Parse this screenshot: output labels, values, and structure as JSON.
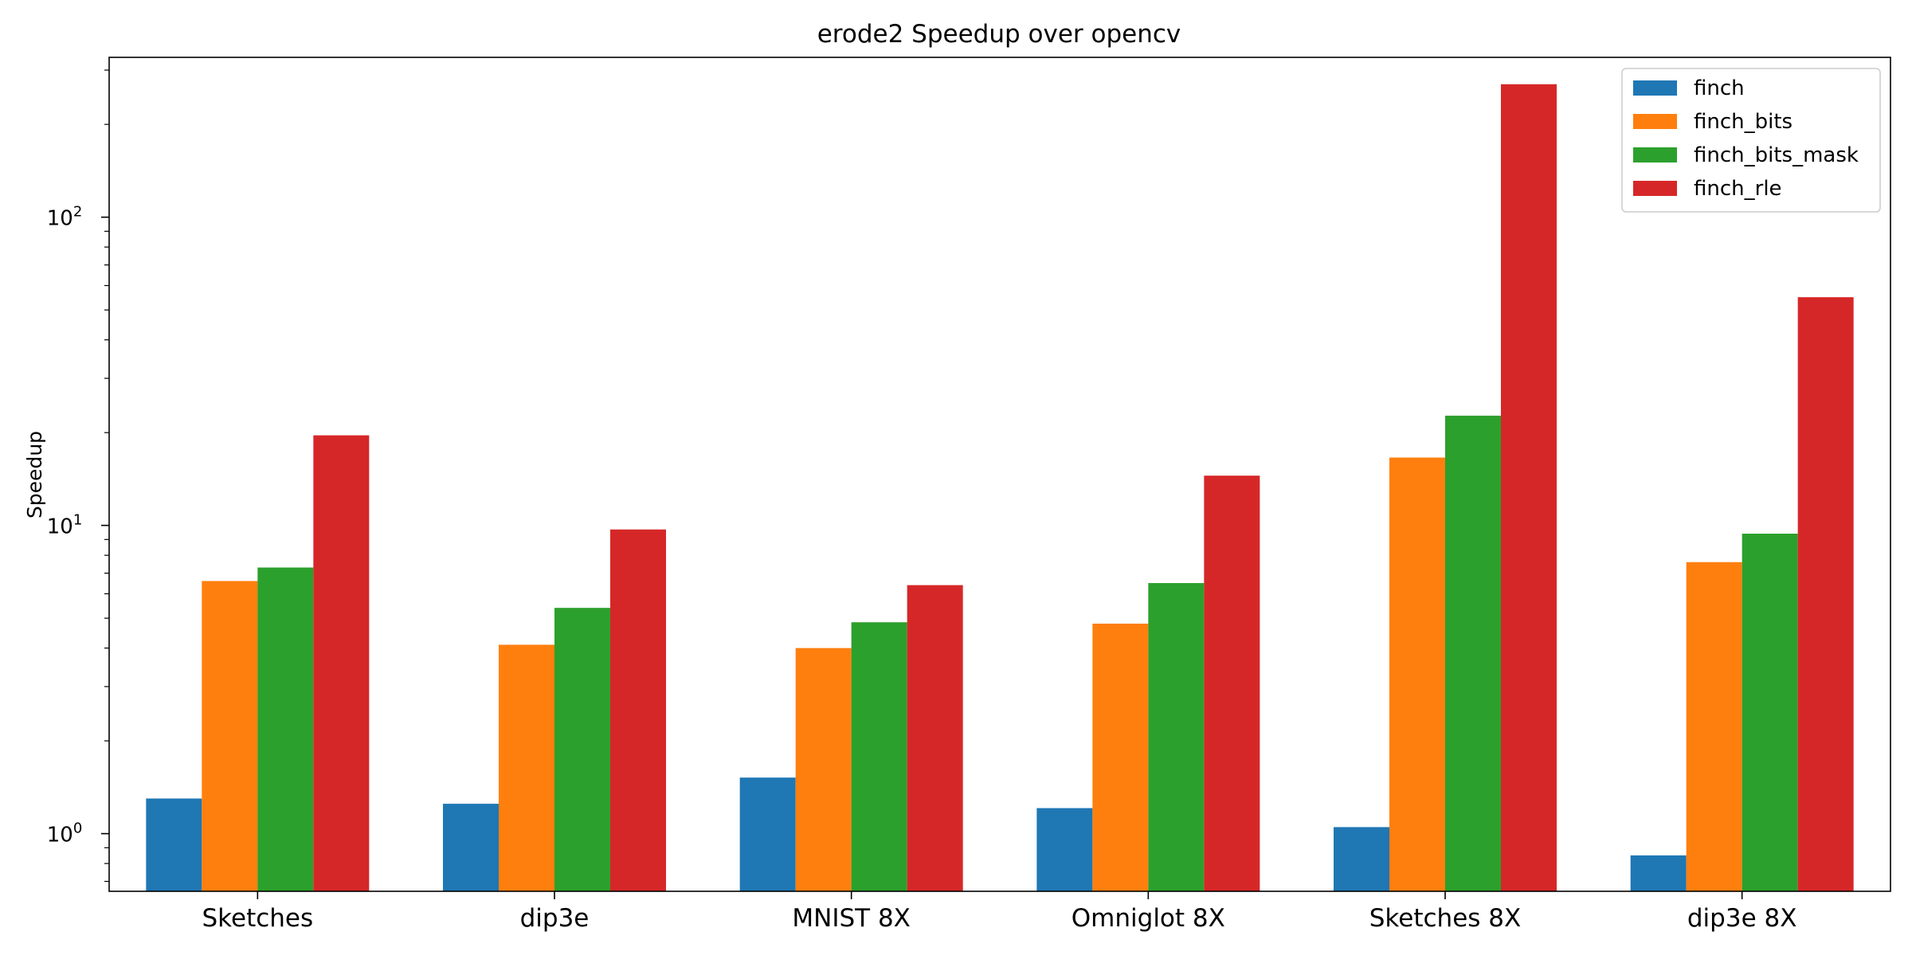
{
  "chart_data": {
    "type": "bar",
    "title": "erode2 Speedup over opencv",
    "xlabel": "",
    "ylabel": "Speedup",
    "yscale": "log",
    "ylim": [
      0.65,
      330
    ],
    "yticks": [
      {
        "value": 1,
        "base": "10",
        "exp": "0"
      },
      {
        "value": 10,
        "base": "10",
        "exp": "1"
      },
      {
        "value": 100,
        "base": "10",
        "exp": "2"
      }
    ],
    "grid": false,
    "legend_position": "top-right",
    "categories": [
      "Sketches",
      "dip3e",
      "MNIST 8X",
      "Omniglot 8X",
      "Sketches 8X",
      "dip3e 8X"
    ],
    "series": [
      {
        "name": "finch",
        "color": "#1f77b4",
        "values": [
          1.3,
          1.25,
          1.52,
          1.21,
          1.05,
          0.85
        ]
      },
      {
        "name": "finch_bits",
        "color": "#ff7f0e",
        "values": [
          6.6,
          4.1,
          4.0,
          4.8,
          16.6,
          7.6
        ]
      },
      {
        "name": "finch_bits_mask",
        "color": "#2ca02c",
        "values": [
          7.3,
          5.4,
          4.85,
          6.5,
          22.7,
          9.4
        ]
      },
      {
        "name": "finch_rle",
        "color": "#d62728",
        "values": [
          19.6,
          9.7,
          6.4,
          14.5,
          270,
          55
        ]
      }
    ]
  }
}
